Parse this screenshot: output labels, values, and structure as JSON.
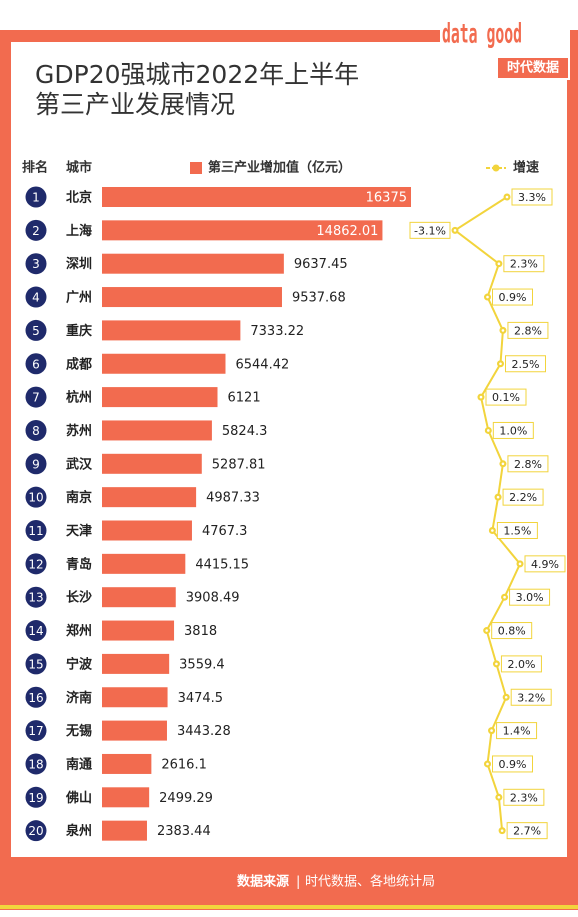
{
  "logo": {
    "mark": "data good",
    "name": "时代数据"
  },
  "chart_data": {
    "type": "bar",
    "title": [
      "GDP20强城市2022年上半年",
      "第三产业发展情况"
    ],
    "rank_header": "排名",
    "city_header": "城市",
    "ranks": [
      1,
      2,
      3,
      4,
      5,
      6,
      7,
      8,
      9,
      10,
      11,
      12,
      13,
      14,
      15,
      16,
      17,
      18,
      19,
      20
    ],
    "categories": [
      "北京",
      "上海",
      "深圳",
      "广州",
      "重庆",
      "成都",
      "杭州",
      "苏州",
      "武汉",
      "南京",
      "天津",
      "青岛",
      "长沙",
      "郑州",
      "宁波",
      "济南",
      "无锡",
      "南通",
      "佛山",
      "泉州"
    ],
    "series": [
      {
        "name": "第三产业增加值（亿元）",
        "color": "#f26b4f",
        "values": [
          16375,
          14862.01,
          9637.45,
          9537.68,
          7333.22,
          6544.42,
          6121,
          5824.3,
          5287.81,
          4987.33,
          4767.3,
          4415.15,
          3908.49,
          3818,
          3559.4,
          3474.5,
          3443.28,
          2616.1,
          2499.29,
          2383.44
        ]
      },
      {
        "name": "增速",
        "type": "line",
        "color": "#f2d43c",
        "values": [
          3.3,
          -3.1,
          2.3,
          0.9,
          2.8,
          2.5,
          0.1,
          1.0,
          2.8,
          2.2,
          1.5,
          4.9,
          3.0,
          0.8,
          2.0,
          3.2,
          1.4,
          0.9,
          2.3,
          2.7
        ],
        "value_labels": [
          "3.3%",
          "-3.1%",
          "2.3%",
          "0.9%",
          "2.8%",
          "2.5%",
          "0.1%",
          "1.0%",
          "2.8%",
          "2.2%",
          "1.5%",
          "4.9%",
          "3.0%",
          "0.8%",
          "2.0%",
          "3.2%",
          "1.4%",
          "0.9%",
          "2.3%",
          "2.7%"
        ]
      }
    ],
    "source_label": "数据来源",
    "source": "时代数据、各地统计局"
  }
}
